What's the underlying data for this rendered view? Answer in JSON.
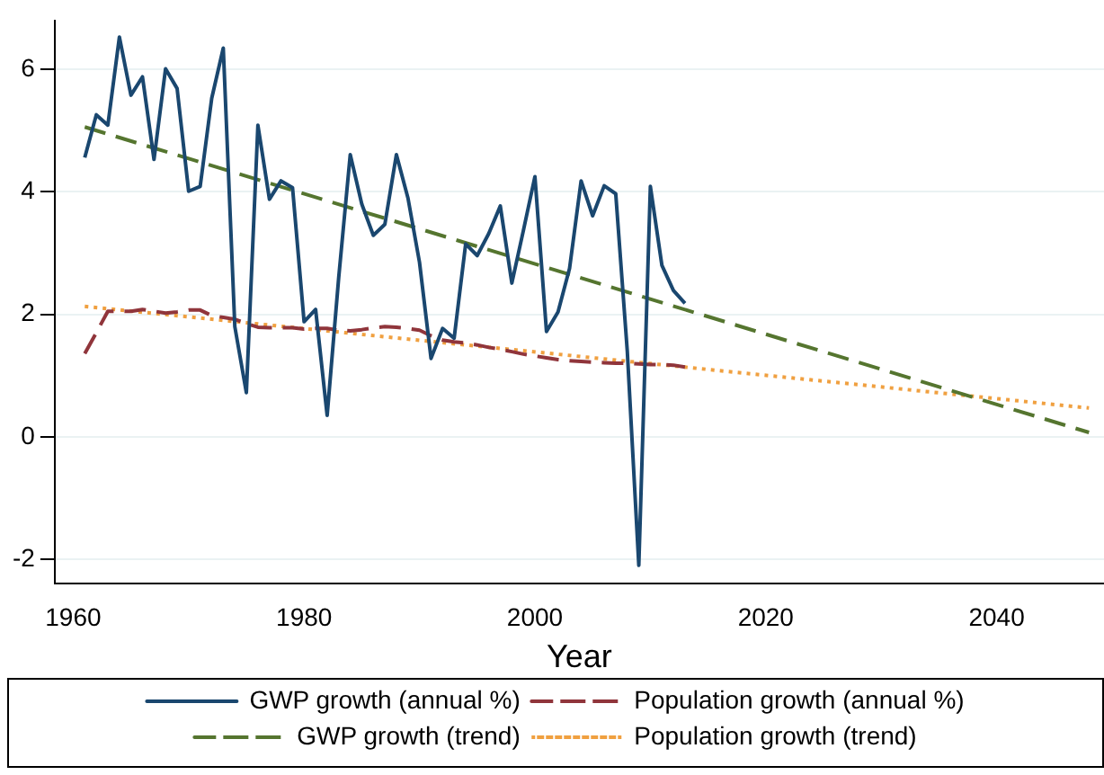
{
  "chart_data": {
    "type": "line",
    "xlabel": "Year",
    "xlim": [
      1958.4,
      2049.3
    ],
    "xticks": [
      1960,
      1980,
      2000,
      2020,
      2040
    ],
    "ylim": [
      -2.4,
      6.8
    ],
    "yticks": [
      -2,
      0,
      2,
      4,
      6
    ],
    "grid": "y",
    "legend": "bottom",
    "marker": "none",
    "series": [
      {
        "name": "GWP growth (annual %)",
        "color": "#1a476f",
        "line_style": "solid",
        "x": [
          1961,
          1962,
          1963,
          1964,
          1965,
          1966,
          1967,
          1968,
          1969,
          1970,
          1971,
          1972,
          1973,
          1974,
          1975,
          1976,
          1977,
          1978,
          1979,
          1980,
          1981,
          1982,
          1983,
          1984,
          1985,
          1986,
          1987,
          1988,
          1989,
          1990,
          1991,
          1992,
          1993,
          1994,
          1995,
          1996,
          1997,
          1998,
          1999,
          2000,
          2001,
          2002,
          2003,
          2004,
          2005,
          2006,
          2007,
          2008,
          2009,
          2010,
          2011,
          2012,
          2013
        ],
        "values": [
          4.56,
          5.26,
          5.09,
          6.53,
          5.58,
          5.88,
          4.53,
          6.01,
          5.69,
          4.01,
          4.09,
          5.53,
          6.35,
          1.8,
          0.72,
          5.09,
          3.88,
          4.18,
          4.07,
          1.88,
          2.08,
          0.35,
          2.6,
          4.61,
          3.8,
          3.29,
          3.47,
          4.61,
          3.9,
          2.85,
          1.28,
          1.77,
          1.61,
          3.15,
          2.96,
          3.32,
          3.77,
          2.51,
          3.37,
          4.25,
          1.72,
          2.04,
          2.75,
          4.18,
          3.61,
          4.1,
          3.97,
          1.4,
          -2.1,
          4.09,
          2.8,
          2.39,
          2.18
        ]
      },
      {
        "name": "Population growth (annual %)",
        "color": "#90353b",
        "line_style": "dashed",
        "x": [
          1961,
          1962,
          1963,
          1964,
          1965,
          1966,
          1967,
          1968,
          1969,
          1970,
          1971,
          1972,
          1973,
          1974,
          1975,
          1976,
          1977,
          1978,
          1979,
          1980,
          1981,
          1982,
          1983,
          1984,
          1985,
          1986,
          1987,
          1988,
          1989,
          1990,
          1991,
          1992,
          1993,
          1994,
          1995,
          1996,
          1997,
          1998,
          1999,
          2000,
          2001,
          2002,
          2003,
          2004,
          2005,
          2006,
          2007,
          2008,
          2009,
          2010,
          2011,
          2012,
          2013
        ],
        "values": [
          1.36,
          1.7,
          2.05,
          2.05,
          2.05,
          2.08,
          2.05,
          2.02,
          2.04,
          2.07,
          2.07,
          1.98,
          1.95,
          1.92,
          1.85,
          1.79,
          1.78,
          1.78,
          1.78,
          1.76,
          1.77,
          1.77,
          1.74,
          1.73,
          1.75,
          1.78,
          1.8,
          1.79,
          1.77,
          1.74,
          1.65,
          1.58,
          1.55,
          1.53,
          1.5,
          1.46,
          1.43,
          1.39,
          1.35,
          1.32,
          1.29,
          1.26,
          1.24,
          1.23,
          1.22,
          1.21,
          1.2,
          1.2,
          1.19,
          1.18,
          1.18,
          1.17,
          1.14
        ]
      },
      {
        "name": "GWP growth (trend)",
        "color": "#55752f",
        "line_style": "dashed",
        "x": [
          1961,
          2048
        ],
        "values": [
          5.06,
          0.07
        ]
      },
      {
        "name": "Population growth (trend)",
        "color": "#f0a040",
        "line_style": "dotted",
        "x": [
          1961,
          2048
        ],
        "values": [
          2.13,
          0.47
        ]
      }
    ]
  }
}
